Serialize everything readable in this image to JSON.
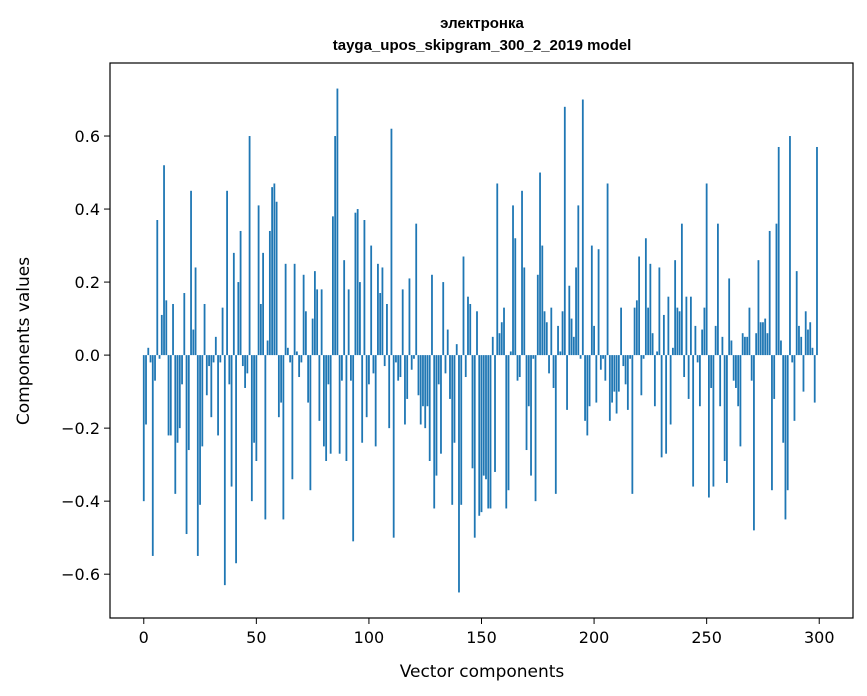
{
  "chart_data": {
    "type": "bar",
    "title": "электронка",
    "subtitle": "tayga_upos_skipgram_300_2_2019 model",
    "xlabel": "Vector components",
    "ylabel": "Components values",
    "xlim": [
      -15,
      315
    ],
    "ylim": [
      -0.72,
      0.8
    ],
    "xticks": [
      0,
      50,
      100,
      150,
      200,
      250,
      300
    ],
    "yticks": [
      -0.6,
      -0.4,
      -0.2,
      0.0,
      0.2,
      0.4,
      0.6
    ],
    "ytick_labels": [
      "−0.6",
      "−0.4",
      "−0.2",
      "0.0",
      "0.2",
      "0.4",
      "0.6"
    ],
    "grid": false,
    "bar_color": "#1f77b4",
    "values": [
      -0.4,
      -0.19,
      0.02,
      -0.02,
      -0.55,
      -0.07,
      0.37,
      -0.01,
      0.11,
      0.52,
      0.15,
      -0.22,
      -0.22,
      0.14,
      -0.38,
      -0.24,
      -0.2,
      -0.08,
      0.17,
      -0.49,
      -0.26,
      0.45,
      0.07,
      0.24,
      -0.55,
      -0.41,
      -0.25,
      0.14,
      -0.11,
      -0.03,
      -0.17,
      -0.02,
      0.05,
      -0.22,
      -0.02,
      0.13,
      -0.63,
      0.45,
      -0.08,
      -0.36,
      0.28,
      -0.57,
      0.2,
      0.34,
      -0.03,
      -0.09,
      -0.05,
      0.6,
      -0.4,
      -0.24,
      -0.29,
      0.41,
      0.14,
      0.28,
      -0.45,
      0.04,
      0.34,
      0.46,
      0.47,
      0.42,
      -0.17,
      -0.13,
      -0.45,
      0.25,
      0.02,
      -0.02,
      -0.34,
      0.25,
      0.01,
      -0.06,
      -0.02,
      0.22,
      0.12,
      -0.13,
      -0.37,
      0.1,
      0.23,
      0.18,
      -0.18,
      0.18,
      -0.25,
      -0.29,
      -0.08,
      -0.27,
      0.38,
      0.6,
      0.73,
      -0.27,
      -0.07,
      0.26,
      -0.29,
      0.18,
      -0.07,
      -0.51,
      0.39,
      0.4,
      0.2,
      -0.24,
      0.37,
      -0.17,
      -0.08,
      0.3,
      -0.05,
      -0.25,
      0.25,
      0.17,
      0.24,
      -0.03,
      0.14,
      -0.2,
      0.62,
      -0.5,
      -0.02,
      -0.07,
      -0.06,
      0.18,
      -0.19,
      -0.12,
      0.21,
      -0.04,
      -0.01,
      0.36,
      -0.11,
      -0.19,
      -0.14,
      -0.2,
      -0.14,
      -0.29,
      0.22,
      -0.42,
      -0.33,
      -0.08,
      -0.27,
      0.2,
      -0.05,
      0.07,
      -0.12,
      -0.41,
      -0.24,
      0.03,
      -0.65,
      -0.41,
      0.27,
      -0.06,
      0.16,
      0.14,
      -0.31,
      -0.5,
      0.12,
      -0.44,
      -0.43,
      -0.33,
      -0.34,
      -0.42,
      -0.42,
      0.05,
      -0.32,
      0.47,
      0.06,
      0.09,
      0.13,
      -0.42,
      -0.37,
      0.01,
      0.41,
      0.32,
      -0.07,
      -0.06,
      0.45,
      0.24,
      -0.26,
      -0.14,
      -0.33,
      -0.01,
      -0.4,
      0.22,
      0.5,
      0.3,
      0.12,
      0.09,
      -0.05,
      0.13,
      -0.09,
      -0.38,
      0.08,
      0.01,
      0.12,
      0.68,
      -0.15,
      0.19,
      0.1,
      0.05,
      0.24,
      0.41,
      -0.01,
      0.7,
      -0.18,
      -0.22,
      -0.14,
      0.3,
      0.08,
      -0.13,
      0.29,
      -0.04,
      -0.01,
      -0.07,
      0.47,
      -0.18,
      -0.13,
      -0.1,
      -0.16,
      -0.1,
      0.13,
      -0.03,
      -0.08,
      -0.15,
      -0.01,
      -0.38,
      0.13,
      0.15,
      0.27,
      -0.11,
      -0.01,
      0.32,
      0.13,
      0.25,
      0.06,
      -0.14,
      0.01,
      0.24,
      -0.28,
      0.11,
      -0.27,
      0.16,
      -0.19,
      0.02,
      0.26,
      0.13,
      0.12,
      0.36,
      -0.06,
      0.16,
      -0.12,
      0.16,
      -0.36,
      0.08,
      -0.02,
      -0.14,
      0.07,
      0.13,
      0.47,
      -0.39,
      -0.09,
      -0.36,
      0.08,
      0.36,
      -0.14,
      0.05,
      -0.29,
      -0.35,
      0.21,
      0.04,
      -0.07,
      -0.09,
      -0.14,
      -0.25,
      0.06,
      0.05,
      0.05,
      0.13,
      -0.07,
      -0.48,
      0.06,
      0.26,
      0.09,
      0.09,
      0.1,
      0.06,
      0.34,
      -0.37,
      -0.12,
      0.36,
      0.57,
      0.04,
      -0.24,
      -0.45,
      -0.37,
      0.6,
      -0.02,
      -0.18,
      0.23,
      0.08,
      0.05,
      -0.1,
      0.12,
      0.07,
      0.09,
      0.02,
      -0.13,
      0.57
    ]
  }
}
